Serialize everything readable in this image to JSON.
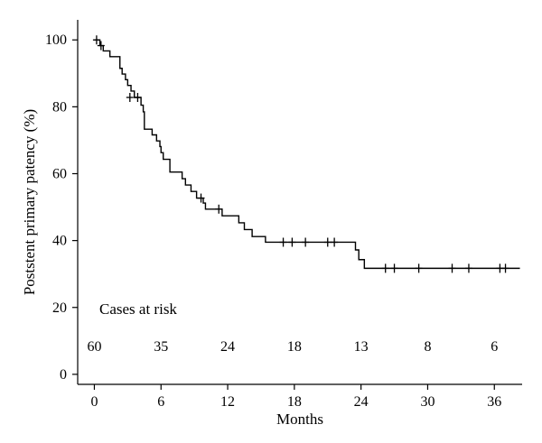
{
  "chart_data": {
    "type": "line",
    "ylabel": "Poststent primary patency (%)",
    "xlabel": "Months",
    "xlim": [
      -1.5,
      38.5
    ],
    "ylim": [
      -3,
      106
    ],
    "x_ticks": [
      0,
      6,
      12,
      18,
      24,
      30,
      36
    ],
    "x_tick_labels": [
      "0",
      "6",
      "12",
      "18",
      "24",
      "30",
      "36"
    ],
    "y_ticks": [
      0,
      20,
      40,
      60,
      80,
      100
    ],
    "y_tick_labels": [
      "0",
      "20",
      "40",
      "60",
      "80",
      "100"
    ],
    "series": [
      {
        "steps": [
          [
            0,
            100
          ],
          [
            0.5,
            98.3
          ],
          [
            0.8,
            96.7
          ],
          [
            1.4,
            95.0
          ],
          [
            2.3,
            91.5
          ],
          [
            2.5,
            89.8
          ],
          [
            2.8,
            88.1
          ],
          [
            3.0,
            86.4
          ],
          [
            3.3,
            84.7
          ],
          [
            3.6,
            82.8
          ],
          [
            4.2,
            80.5
          ],
          [
            4.4,
            78.5
          ],
          [
            4.5,
            73.3
          ],
          [
            5.2,
            71.6
          ],
          [
            5.6,
            69.8
          ],
          [
            5.9,
            68.1
          ],
          [
            6.0,
            66.3
          ],
          [
            6.2,
            64.3
          ],
          [
            6.8,
            60.5
          ],
          [
            7.9,
            58.5
          ],
          [
            8.2,
            56.6
          ],
          [
            8.7,
            54.7
          ],
          [
            9.2,
            52.7
          ],
          [
            9.8,
            51.2
          ],
          [
            10.0,
            49.4
          ],
          [
            11.5,
            47.4
          ],
          [
            13.0,
            45.3
          ],
          [
            13.5,
            43.3
          ],
          [
            14.2,
            41.2
          ],
          [
            15.4,
            39.5
          ],
          [
            23.5,
            37.2
          ],
          [
            23.8,
            34.3
          ],
          [
            24.3,
            31.7
          ],
          [
            38.3,
            31.7
          ]
        ],
        "censored": [
          [
            0.2,
            100
          ],
          [
            0.6,
            98.3
          ],
          [
            3.2,
            82.8
          ],
          [
            3.9,
            82.8
          ],
          [
            9.6,
            52.7
          ],
          [
            11.2,
            49.4
          ],
          [
            17.0,
            39.5
          ],
          [
            17.8,
            39.5
          ],
          [
            19.0,
            39.5
          ],
          [
            21.0,
            39.5
          ],
          [
            21.6,
            39.5
          ],
          [
            26.2,
            31.7
          ],
          [
            27.0,
            31.7
          ],
          [
            29.2,
            31.7
          ],
          [
            32.2,
            31.7
          ],
          [
            33.7,
            31.7
          ],
          [
            36.5,
            31.7
          ],
          [
            37.0,
            31.7
          ]
        ]
      }
    ],
    "cases_at_risk_label": "Cases at risk",
    "cases_at_risk": [
      "60",
      "35",
      "24",
      "18",
      "13",
      "8",
      "6"
    ]
  }
}
